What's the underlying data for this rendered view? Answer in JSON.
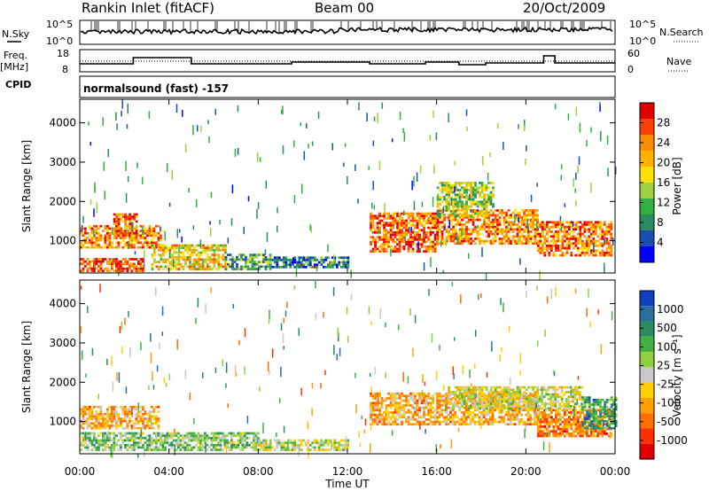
{
  "header": {
    "station": "Rankin Inlet (fitACF)",
    "beam": "Beam 00",
    "date": "20/Oct/2009"
  },
  "left_labels": {
    "nsky": "N.Sky",
    "freq_top": "Freq.",
    "freq_unit": "[MHz]",
    "cpid": "CPID"
  },
  "right_labels": {
    "nsearch": "N.Search",
    "nave": "Nave"
  },
  "top_axes": {
    "noise_ticks": [
      "10^5",
      "10^0"
    ],
    "freq_ticks": [
      "18",
      "8"
    ],
    "nave_ticks": [
      "60",
      "0"
    ]
  },
  "cpid_text": "normalsound (fast) -157",
  "xaxis": {
    "label": "Time UT",
    "ticks": [
      "00:00",
      "04:00",
      "08:00",
      "12:00",
      "16:00",
      "20:00",
      "00:00"
    ]
  },
  "chart_data": [
    {
      "type": "heatmap",
      "panel": "power",
      "ylabel": "Slant Range [km]",
      "xlabel": "",
      "yticks": [
        1000,
        2000,
        3000,
        4000
      ],
      "ylim": [
        180,
        4600
      ],
      "xlim_hours": [
        0,
        24
      ],
      "colorbar": {
        "label": "Power [dB]",
        "ticks": [
          "28",
          "24",
          "20",
          "16",
          "12",
          "8",
          "4"
        ],
        "colors": [
          "#e00000",
          "#ff4000",
          "#ff8c00",
          "#ffb000",
          "#ffe000",
          "#a0d040",
          "#30b040",
          "#2a8c60",
          "#1a4fb0",
          "#0000ff"
        ],
        "range": [
          0,
          30
        ]
      },
      "echo_regions": [
        {
          "t0": 0.0,
          "t1": 2.8,
          "r0": 200,
          "r1": 550,
          "level": 26
        },
        {
          "t0": 0.0,
          "t1": 3.6,
          "r0": 800,
          "r1": 1350,
          "level": 22
        },
        {
          "t0": 1.5,
          "t1": 2.5,
          "r0": 1100,
          "r1": 1650,
          "level": 24
        },
        {
          "t0": 3.2,
          "t1": 6.5,
          "r0": 250,
          "r1": 900,
          "level": 18
        },
        {
          "t0": 6.5,
          "t1": 8.5,
          "r0": 250,
          "r1": 650,
          "level": 10
        },
        {
          "t0": 8.5,
          "t1": 12.0,
          "r0": 300,
          "r1": 600,
          "level": 6
        },
        {
          "t0": 13.0,
          "t1": 16.0,
          "r0": 700,
          "r1": 1700,
          "level": 24
        },
        {
          "t0": 16.0,
          "t1": 20.5,
          "r0": 900,
          "r1": 1800,
          "level": 22
        },
        {
          "t0": 20.5,
          "t1": 23.8,
          "r0": 600,
          "r1": 1500,
          "level": 23
        },
        {
          "t0": 16.0,
          "t1": 18.5,
          "r0": 1600,
          "r1": 2500,
          "level": 14
        }
      ]
    },
    {
      "type": "heatmap",
      "panel": "velocity",
      "ylabel": "Slant Range [km]",
      "xlabel": "Time UT",
      "yticks": [
        1000,
        2000,
        3000,
        4000
      ],
      "ylim": [
        180,
        4600
      ],
      "xlim_hours": [
        0,
        24
      ],
      "colorbar": {
        "label": "Velocity [m s⁻¹]",
        "ticks": [
          "1000",
          "500",
          "100",
          "25",
          "-25",
          "-100",
          "-500",
          "-1000"
        ],
        "colors": [
          "#1040c0",
          "#2a6fa0",
          "#2a8c60",
          "#40b040",
          "#90d040",
          "#c8c8c8",
          "#ffd000",
          "#ffa000",
          "#ff7000",
          "#ff3000",
          "#e00000"
        ],
        "range": [
          -1000,
          1000
        ]
      },
      "echo_regions": [
        {
          "t0": 0.0,
          "t1": 3.5,
          "r0": 800,
          "r1": 1400,
          "level": -300
        },
        {
          "t0": 0.0,
          "t1": 8.0,
          "r0": 250,
          "r1": 700,
          "level": 200
        },
        {
          "t0": 8.0,
          "t1": 12.0,
          "r0": 250,
          "r1": 500,
          "level": 50
        },
        {
          "t0": 13.0,
          "t1": 20.5,
          "r0": 900,
          "r1": 1700,
          "level": -300
        },
        {
          "t0": 16.5,
          "t1": 22.5,
          "r0": 1300,
          "r1": 1900,
          "level": 0
        },
        {
          "t0": 20.5,
          "t1": 23.8,
          "r0": 600,
          "r1": 1300,
          "level": -500
        },
        {
          "t0": 22.5,
          "t1": 24.0,
          "r0": 800,
          "r1": 1600,
          "level": 500
        }
      ]
    }
  ]
}
